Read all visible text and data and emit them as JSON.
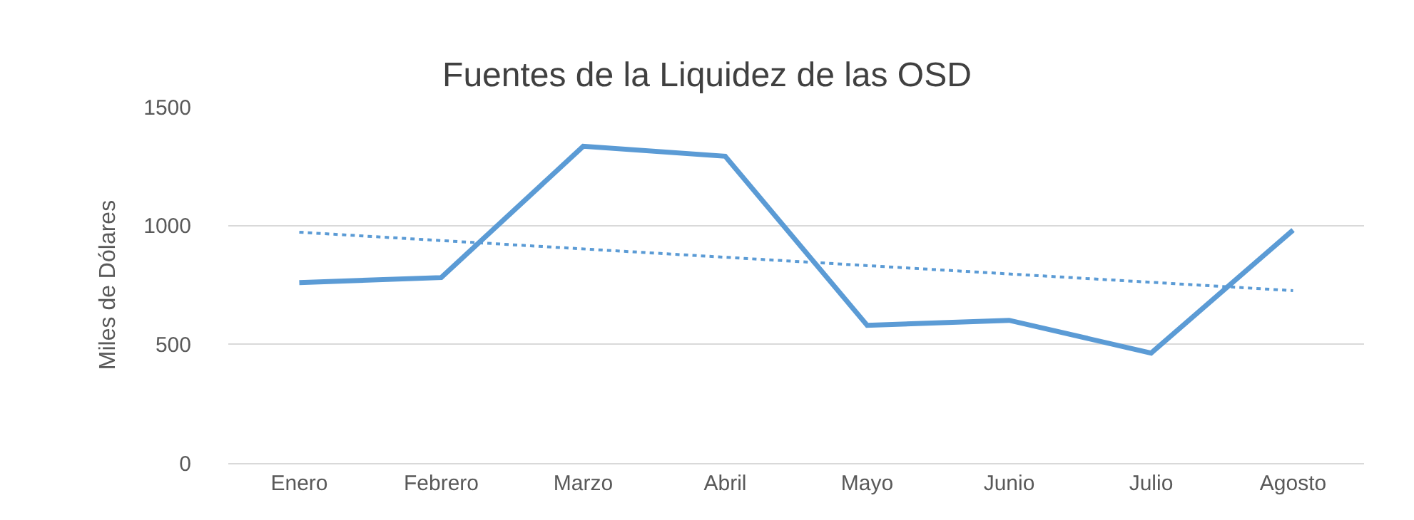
{
  "chart_data": {
    "type": "line",
    "title": "Fuentes de la Liquidez de las OSD",
    "ylabel": "Miles de Dólares",
    "categories": [
      "Enero",
      "Febrero",
      "Marzo",
      "Abril",
      "Mayo",
      "Junio",
      "Julio",
      "Agosto"
    ],
    "series": [
      {
        "color": "#5b9bd5",
        "values": [
          760,
          781,
          1334,
          1292,
          580,
          601,
          463,
          981
        ],
        "line_style": "solid"
      },
      {
        "type": "line",
        "color": "#5b9bd5",
        "x": [
          "Enero",
          "Agosto"
        ],
        "values": [
          972,
          726
        ],
        "line_style": "dotted"
      }
    ],
    "ylim": [
      0,
      1500
    ],
    "yticks": [
      0,
      500,
      1000,
      1500
    ],
    "grid": "y",
    "marker": "none"
  }
}
